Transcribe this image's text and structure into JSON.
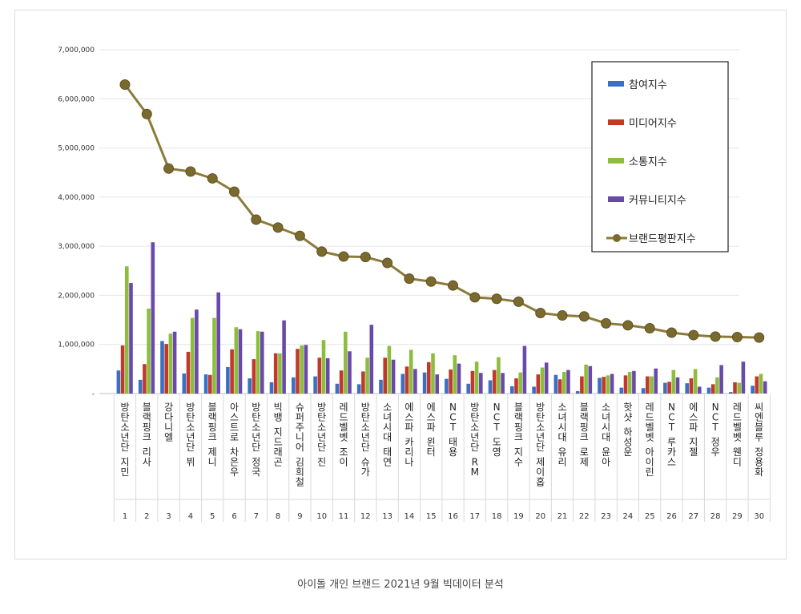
{
  "caption": "아이돌 개인 브랜드 2021년 9월 빅데이터 분석",
  "chart_data": {
    "type": "bar",
    "title": "",
    "xlabel": "",
    "ylabel": "",
    "ylim": [
      0,
      7000000
    ],
    "yticks": [
      0,
      1000000,
      2000000,
      3000000,
      4000000,
      5000000,
      6000000,
      7000000
    ],
    "ytick_labels": [
      "-",
      "1,000,000",
      "2,000,000",
      "3,000,000",
      "4,000,000",
      "5,000,000",
      "6,000,000",
      "7,000,000"
    ],
    "grid": true,
    "legend_position": "top-right",
    "ranks": [
      "1",
      "2",
      "3",
      "4",
      "5",
      "6",
      "7",
      "8",
      "9",
      "10",
      "11",
      "12",
      "13",
      "14",
      "15",
      "16",
      "17",
      "18",
      "19",
      "20",
      "21",
      "22",
      "23",
      "24",
      "25",
      "26",
      "27",
      "28",
      "29",
      "30"
    ],
    "categories": [
      "방탄소년단 지민",
      "블랙핑크 리사",
      "강다니엘",
      "방탄소년단 뷔",
      "블랙핑크 제니",
      "아스트로 차은우",
      "방탄소년단 정국",
      "빅뱅 지드래곤",
      "슈퍼주니어 김희철",
      "방탄소년단 진",
      "레드벨벳 조이",
      "방탄소년단 슈가",
      "소녀시대 태연",
      "에스파 카리나",
      "에스파 윈터",
      "NCT 태용",
      "방탄소년단 RM",
      "NCT 도영",
      "블랙핑크 지수",
      "방탄소년단 제이홉",
      "소녀시대 유리",
      "블랙핑크 로제",
      "소녀시대 윤아",
      "핫샷 하성운",
      "레드벨벳 아이린",
      "NCT 루카스",
      "에스파 지젤",
      "NCT 정우",
      "레드벨벳 웬디",
      "씨엔블루 정용화"
    ],
    "series": [
      {
        "name": "참여지수",
        "color": "#3a6fc4",
        "kind": "bar",
        "values": [
          470000,
          280000,
          1070000,
          410000,
          390000,
          540000,
          310000,
          230000,
          330000,
          350000,
          200000,
          190000,
          280000,
          400000,
          430000,
          300000,
          200000,
          270000,
          150000,
          140000,
          380000,
          50000,
          320000,
          120000,
          110000,
          220000,
          210000,
          120000,
          30000,
          160000
        ]
      },
      {
        "name": "미디어지수",
        "color": "#c0392b",
        "kind": "bar",
        "values": [
          980000,
          600000,
          1010000,
          850000,
          380000,
          900000,
          700000,
          820000,
          910000,
          730000,
          470000,
          450000,
          730000,
          550000,
          640000,
          490000,
          460000,
          480000,
          310000,
          390000,
          290000,
          350000,
          340000,
          370000,
          350000,
          240000,
          310000,
          190000,
          230000,
          350000
        ]
      },
      {
        "name": "소통지수",
        "color": "#8dbd3c",
        "kind": "bar",
        "values": [
          2590000,
          1730000,
          1220000,
          1540000,
          1540000,
          1350000,
          1270000,
          820000,
          980000,
          1090000,
          1260000,
          730000,
          970000,
          890000,
          820000,
          780000,
          650000,
          740000,
          430000,
          530000,
          440000,
          590000,
          370000,
          440000,
          350000,
          480000,
          500000,
          330000,
          220000,
          400000
        ]
      },
      {
        "name": "커뮤니티지수",
        "color": "#6a4aa8",
        "kind": "bar",
        "values": [
          2250000,
          3080000,
          1260000,
          1710000,
          2060000,
          1310000,
          1260000,
          1490000,
          990000,
          720000,
          860000,
          1400000,
          690000,
          500000,
          390000,
          610000,
          420000,
          420000,
          970000,
          630000,
          480000,
          560000,
          400000,
          460000,
          510000,
          330000,
          140000,
          580000,
          650000,
          250000
        ]
      },
      {
        "name": "브랜드평판지수",
        "color": "#7a6a2e",
        "kind": "line",
        "values": [
          6290000,
          5690000,
          4580000,
          4520000,
          4380000,
          4110000,
          3540000,
          3380000,
          3210000,
          2890000,
          2790000,
          2780000,
          2660000,
          2340000,
          2280000,
          2200000,
          1960000,
          1930000,
          1870000,
          1640000,
          1590000,
          1570000,
          1430000,
          1390000,
          1330000,
          1240000,
          1190000,
          1160000,
          1150000,
          1140000
        ]
      }
    ]
  }
}
